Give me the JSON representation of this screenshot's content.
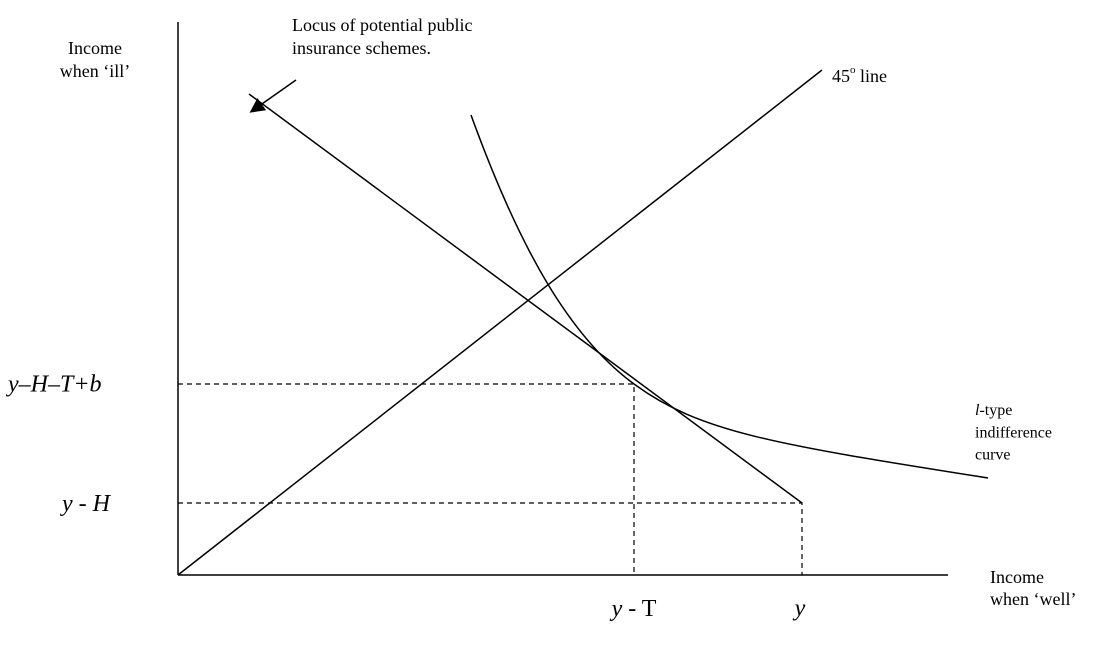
{
  "axes": {
    "y_label": [
      "Income",
      "when ‘ill’"
    ],
    "x_label": [
      "Income",
      "when ‘well’"
    ]
  },
  "annotations": {
    "locus": [
      "Locus of potential public",
      "insurance schemes."
    ],
    "line_45": {
      "number": "45",
      "degree": "o",
      "rest": " line"
    },
    "curve": {
      "italic": "l",
      "rest": "-type",
      "lines": [
        "indifference",
        "curve"
      ]
    }
  },
  "levels": {
    "y_H_T_b": "y–H–T+b",
    "y_H": {
      "var": "y",
      "rest": " - H"
    },
    "y_T": {
      "var": "y",
      "rest": " - T"
    },
    "y": "y"
  }
}
